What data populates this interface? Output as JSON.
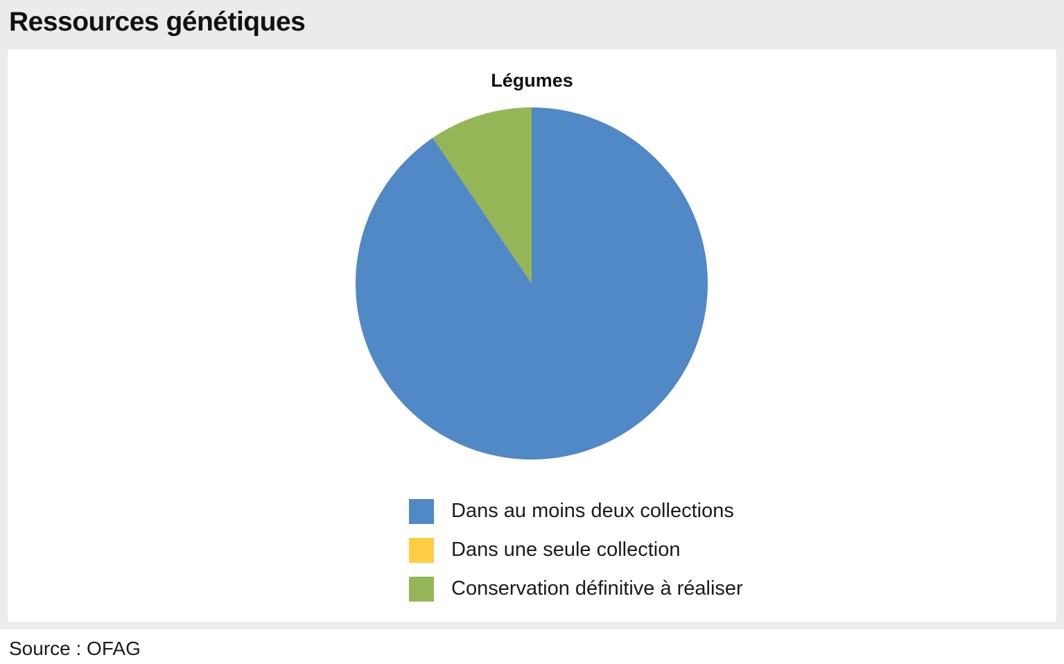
{
  "page": {
    "title": "Ressources génétiques",
    "source": "Source : OFAG"
  },
  "chart_data": {
    "type": "pie",
    "title": "Légumes",
    "categories": [
      "Dans au moins deux collections",
      "Dans une seule collection",
      "Conservation définitive à réaliser"
    ],
    "values": [
      90.5,
      0,
      9.5
    ],
    "unit": "%",
    "start_angle": "top",
    "direction": "clockwise",
    "legend_position": "bottom",
    "colors": [
      "#5188c6",
      "#fdcd42",
      "#95b656"
    ]
  }
}
